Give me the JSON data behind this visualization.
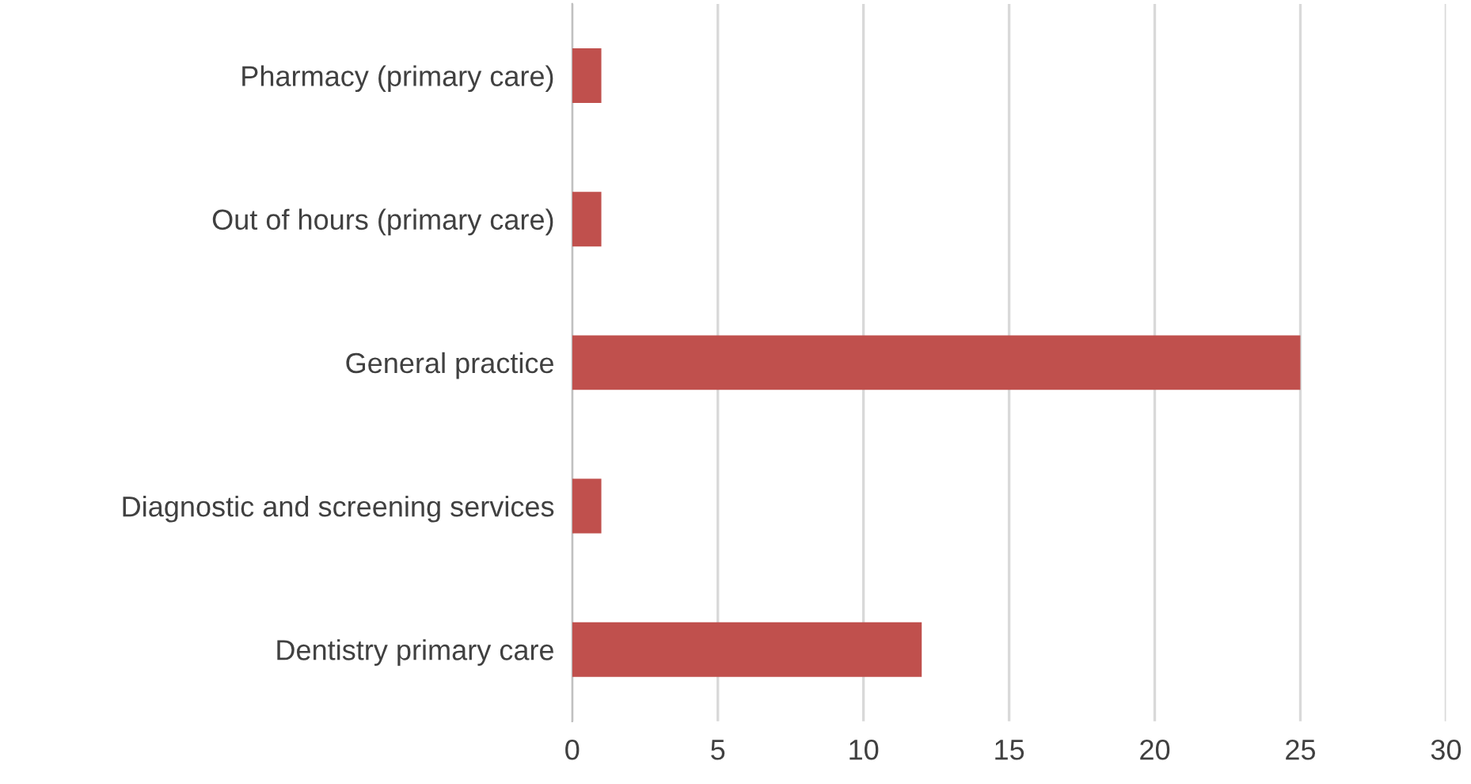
{
  "chart_data": {
    "type": "bar",
    "orientation": "horizontal",
    "categories": [
      "Pharmacy (primary care)",
      "Out of hours (primary care)",
      "General practice",
      "Diagnostic and screening services",
      "Dentistry primary care"
    ],
    "values": [
      1,
      1,
      25,
      1,
      12
    ],
    "color": "#c0504d",
    "xlim": [
      0,
      30
    ],
    "xticks": [
      0,
      5,
      10,
      15,
      20,
      25,
      30
    ],
    "grid": "x",
    "legend": false
  }
}
